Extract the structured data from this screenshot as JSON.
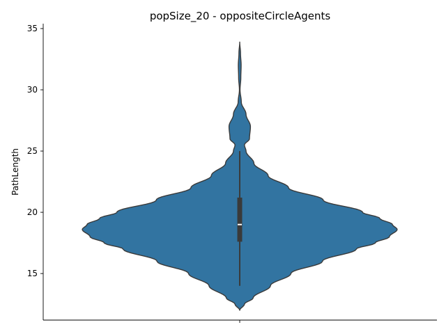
{
  "chart_data": {
    "type": "violin",
    "title": "popSize_20 - oppositeCircleAgents",
    "xlabel": "",
    "ylabel": "PathLength",
    "ylim": [
      11.2,
      35.4
    ],
    "yticks": [
      15,
      20,
      25,
      30,
      35
    ],
    "grid": false,
    "legend": "none",
    "color": "#3274a1",
    "edge_color": "#3a3a3a",
    "box_color": "#3a3a3a",
    "median_color": "#ffffff",
    "violin": {
      "y_min": 12.0,
      "y_max": 33.9,
      "mode": 18.6,
      "density_profile": [
        [
          12.0,
          0.0
        ],
        [
          12.5,
          0.03
        ],
        [
          13.0,
          0.085
        ],
        [
          14.0,
          0.195
        ],
        [
          15.0,
          0.325
        ],
        [
          16.0,
          0.525
        ],
        [
          17.0,
          0.74
        ],
        [
          17.5,
          0.86
        ],
        [
          18.0,
          0.95
        ],
        [
          18.6,
          1.0
        ],
        [
          19.0,
          0.97
        ],
        [
          19.5,
          0.89
        ],
        [
          20.0,
          0.78
        ],
        [
          21.0,
          0.53
        ],
        [
          22.0,
          0.31
        ],
        [
          23.0,
          0.18
        ],
        [
          24.0,
          0.09
        ],
        [
          25.0,
          0.04
        ],
        [
          25.5,
          0.03
        ],
        [
          26.0,
          0.062
        ],
        [
          27.0,
          0.068
        ],
        [
          28.0,
          0.04
        ],
        [
          29.0,
          0.01
        ],
        [
          30.0,
          0.002
        ],
        [
          31.0,
          0.007
        ],
        [
          32.0,
          0.009
        ],
        [
          33.0,
          0.005
        ],
        [
          33.9,
          0.0
        ]
      ],
      "box": {
        "q1": 17.6,
        "median": 19.0,
        "q3": 21.2,
        "whisker_low": 14.0,
        "whisker_high": 25.0
      }
    }
  }
}
